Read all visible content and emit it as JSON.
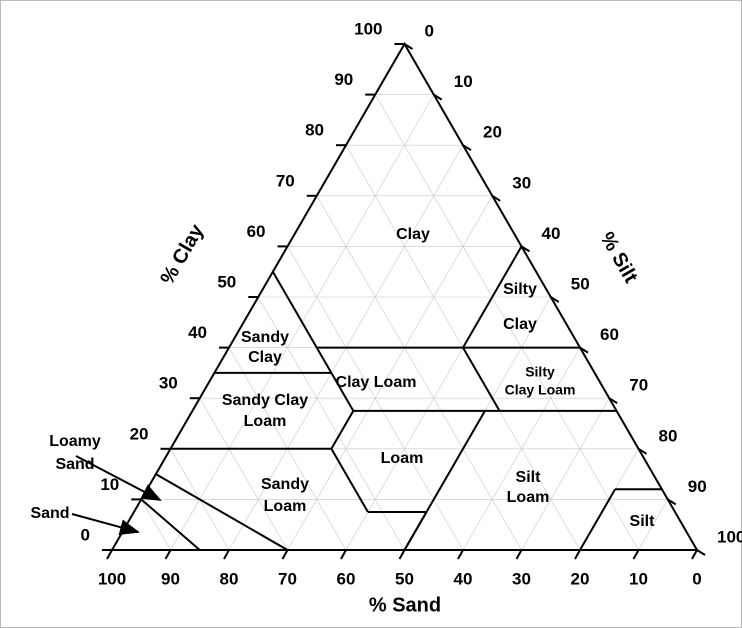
{
  "axes": {
    "sand": {
      "label": "% Sand",
      "ticks": [
        100,
        90,
        80,
        70,
        60,
        50,
        40,
        30,
        20,
        10,
        0
      ]
    },
    "clay": {
      "label": "% Clay",
      "ticks": [
        0,
        10,
        20,
        30,
        40,
        50,
        60,
        70,
        80,
        90,
        100
      ]
    },
    "silt": {
      "label": "% Silt",
      "ticks": [
        0,
        10,
        20,
        30,
        40,
        50,
        60,
        70,
        80,
        90,
        100
      ]
    }
  },
  "regions": [
    {
      "lines": [
        "Clay"
      ]
    },
    {
      "lines": [
        "Silty",
        "Clay"
      ]
    },
    {
      "lines": [
        "Sandy",
        "Clay"
      ]
    },
    {
      "lines": [
        "Clay Loam"
      ]
    },
    {
      "lines": [
        "Silty",
        "Clay Loam"
      ]
    },
    {
      "lines": [
        "Sandy Clay",
        "Loam"
      ]
    },
    {
      "lines": [
        "Loam"
      ]
    },
    {
      "lines": [
        "Sandy",
        "Loam"
      ]
    },
    {
      "lines": [
        "Silt",
        "Loam"
      ]
    },
    {
      "lines": [
        "Silt"
      ]
    }
  ],
  "annotations": [
    {
      "lines": [
        "Loamy",
        "Sand"
      ]
    },
    {
      "lines": [
        "Sand"
      ]
    }
  ]
}
